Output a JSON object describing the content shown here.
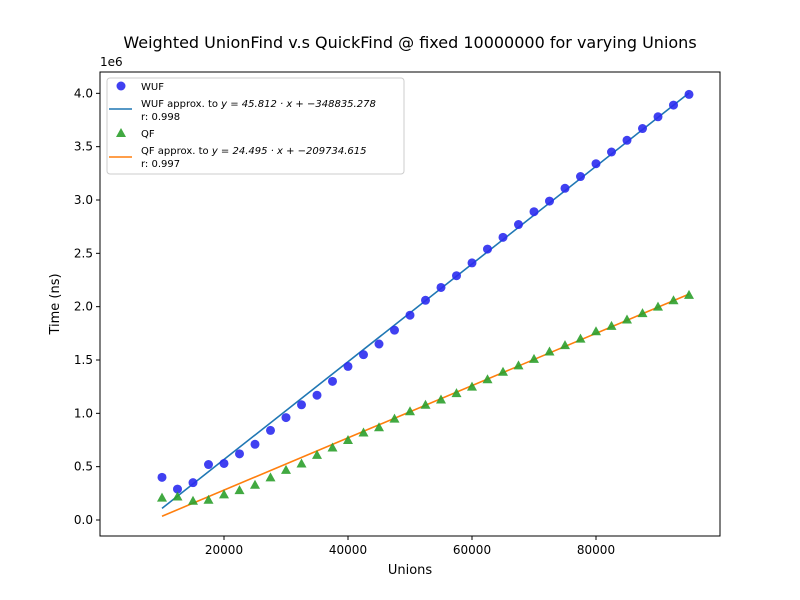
{
  "chart_data": {
    "type": "scatter",
    "title": "Weighted UnionFind v.s QuickFind @ fixed 10000000 for varying Unions",
    "xlabel": "Unions",
    "ylabel": "Time (ns)",
    "y_offset_label": "1e6",
    "xlim": [
      0,
      100000
    ],
    "ylim": [
      -0.15,
      4.2
    ],
    "x_ticks": [
      20000,
      40000,
      60000,
      80000
    ],
    "x_tick_labels": [
      "20000",
      "40000",
      "60000",
      "80000"
    ],
    "y_ticks": [
      0.0,
      0.5,
      1.0,
      1.5,
      2.0,
      2.5,
      3.0,
      3.5,
      4.0
    ],
    "y_tick_labels": [
      "0.0",
      "0.5",
      "1.0",
      "1.5",
      "2.0",
      "2.5",
      "3.0",
      "3.5",
      "4.0"
    ],
    "grid": false,
    "legend_position": "top-left",
    "x": [
      10000,
      12500,
      15000,
      17500,
      20000,
      22500,
      25000,
      27500,
      30000,
      32500,
      35000,
      37500,
      40000,
      42500,
      45000,
      47500,
      50000,
      52500,
      55000,
      57500,
      60000,
      62500,
      65000,
      67500,
      70000,
      72500,
      75000,
      77500,
      80000,
      82500,
      85000,
      87500,
      90000,
      92500,
      95000
    ],
    "series": [
      {
        "name": "WUF",
        "kind": "scatter",
        "marker": "circle",
        "color": "#2b2bf0",
        "values": [
          0.4,
          0.29,
          0.35,
          0.52,
          0.53,
          0.62,
          0.71,
          0.84,
          0.96,
          1.08,
          1.17,
          1.3,
          1.44,
          1.55,
          1.65,
          1.78,
          1.92,
          2.06,
          2.18,
          2.29,
          2.41,
          2.54,
          2.65,
          2.77,
          2.89,
          2.99,
          3.11,
          3.22,
          3.34,
          3.45,
          3.56,
          3.67,
          3.78,
          3.89,
          3.99
        ]
      },
      {
        "name": "QF",
        "kind": "scatter",
        "marker": "triangle",
        "color": "#2ca02c",
        "values": [
          0.21,
          0.22,
          0.18,
          0.19,
          0.24,
          0.28,
          0.33,
          0.4,
          0.47,
          0.53,
          0.61,
          0.68,
          0.75,
          0.82,
          0.87,
          0.95,
          1.02,
          1.08,
          1.13,
          1.19,
          1.25,
          1.32,
          1.39,
          1.45,
          1.51,
          1.58,
          1.64,
          1.7,
          1.77,
          1.82,
          1.88,
          1.94,
          2.0,
          2.06,
          2.11
        ]
      }
    ],
    "fits": [
      {
        "name": "WUF approx. to y = 45.812 · x + −348835.278",
        "label_line1_prefix": "WUF approx. to ",
        "label_line1_eq": "y = 45.812 · x + −348835.278",
        "label_line2": "r: 0.998",
        "slope": 45.812,
        "intercept": -348835.278,
        "color": "#1f77b4",
        "x_range": [
          10000,
          95000
        ]
      },
      {
        "name": "QF approx. to y = 24.495 · x + −209734.615",
        "label_line1_prefix": "QF approx. to ",
        "label_line1_eq": "y = 24.495 · x + −209734.615",
        "label_line2": "r: 0.997",
        "slope": 24.495,
        "intercept": -209734.615,
        "color": "#ff7f0e",
        "x_range": [
          10000,
          95000
        ]
      }
    ]
  }
}
